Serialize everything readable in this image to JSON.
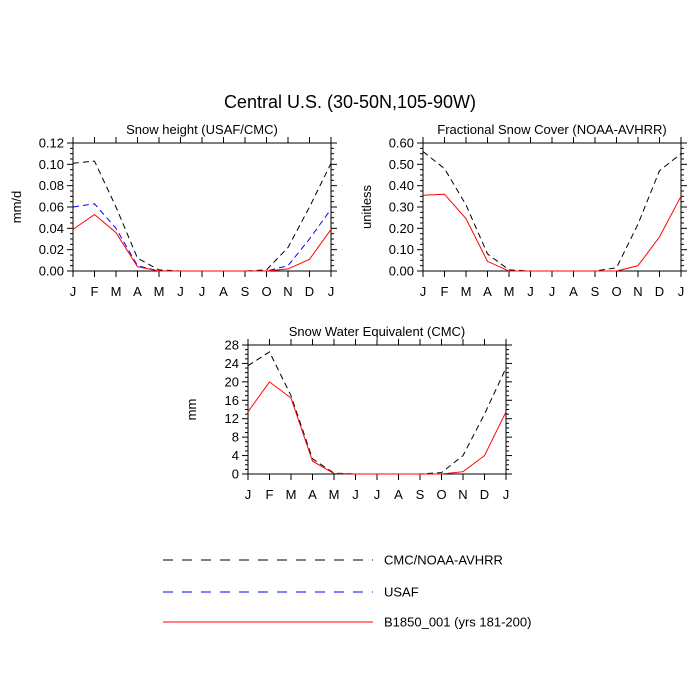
{
  "figure": {
    "title": "Central U.S. (30-50N,105-90W)"
  },
  "legend": [
    {
      "label": "CMC/NOAA-AVHRR",
      "color": "#000000",
      "dash": "dashed"
    },
    {
      "label": "USAF",
      "color": "#0000ff",
      "dash": "dashed"
    },
    {
      "label": "B1850_001 (yrs 181-200)",
      "color": "#ff0000",
      "dash": "solid"
    }
  ],
  "chart_data": [
    {
      "type": "line",
      "title": "Snow height (USAF/CMC)",
      "xlabel": "",
      "ylabel": "mm/d",
      "categories": [
        "J",
        "F",
        "M",
        "A",
        "M",
        "J",
        "J",
        "A",
        "S",
        "O",
        "N",
        "D",
        "J"
      ],
      "ylim": [
        0,
        0.12
      ],
      "yticks": [
        "0.00",
        "0.02",
        "0.04",
        "0.06",
        "0.08",
        "0.10",
        "0.12"
      ],
      "series": [
        {
          "name": "CMC/NOAA-AVHRR",
          "color": "#000000",
          "dash": "dashed",
          "values": [
            0.101,
            0.103,
            0.06,
            0.012,
            0.001,
            0.0,
            0.0,
            0.0,
            0.0,
            0.001,
            0.022,
            0.06,
            0.101
          ]
        },
        {
          "name": "USAF",
          "color": "#0000ff",
          "dash": "dashed",
          "values": [
            0.06,
            0.063,
            0.04,
            0.005,
            0.0,
            0.0,
            0.0,
            0.0,
            0.0,
            0.0,
            0.005,
            0.03,
            0.058
          ]
        },
        {
          "name": "B1850_001 (yrs 181-200)",
          "color": "#ff0000",
          "dash": "solid",
          "values": [
            0.039,
            0.053,
            0.036,
            0.004,
            0.0,
            0.0,
            0.0,
            0.0,
            0.0,
            0.0,
            0.002,
            0.011,
            0.039
          ]
        }
      ]
    },
    {
      "type": "line",
      "title": "Fractional Snow Cover (NOAA-AVHRR)",
      "xlabel": "",
      "ylabel": "unitless",
      "categories": [
        "J",
        "F",
        "M",
        "A",
        "M",
        "J",
        "J",
        "A",
        "S",
        "O",
        "N",
        "D",
        "J"
      ],
      "ylim": [
        0,
        0.6
      ],
      "yticks": [
        "0.00",
        "0.10",
        "0.20",
        "0.30",
        "0.40",
        "0.50",
        "0.60"
      ],
      "series": [
        {
          "name": "CMC/NOAA-AVHRR",
          "color": "#000000",
          "dash": "dashed",
          "values": [
            0.56,
            0.48,
            0.31,
            0.08,
            0.005,
            0.0,
            0.0,
            0.0,
            0.0,
            0.015,
            0.22,
            0.47,
            0.55
          ]
        },
        {
          "name": "B1850_001 (yrs 181-200)",
          "color": "#ff0000",
          "dash": "solid",
          "values": [
            0.355,
            0.36,
            0.245,
            0.045,
            0.0,
            0.0,
            0.0,
            0.0,
            0.0,
            0.0,
            0.025,
            0.16,
            0.35
          ]
        }
      ]
    },
    {
      "type": "line",
      "title": "Snow Water Equivalent (CMC)",
      "xlabel": "",
      "ylabel": "mm",
      "categories": [
        "J",
        "F",
        "M",
        "A",
        "M",
        "J",
        "J",
        "A",
        "S",
        "O",
        "N",
        "D",
        "J"
      ],
      "ylim": [
        0,
        28
      ],
      "yticks": [
        "0",
        "4",
        "8",
        "12",
        "16",
        "20",
        "24",
        "28"
      ],
      "series": [
        {
          "name": "CMC/NOAA-AVHRR",
          "color": "#000000",
          "dash": "dashed",
          "values": [
            23.5,
            26.5,
            17,
            3.3,
            0.2,
            0.0,
            0.0,
            0.0,
            0.0,
            0.3,
            4.0,
            13,
            23
          ]
        },
        {
          "name": "B1850_001 (yrs 181-200)",
          "color": "#ff0000",
          "dash": "solid",
          "values": [
            13.5,
            20,
            16.5,
            2.8,
            0.1,
            0.0,
            0.0,
            0.0,
            0.0,
            0.0,
            0.5,
            4.0,
            13.5
          ]
        }
      ]
    }
  ]
}
